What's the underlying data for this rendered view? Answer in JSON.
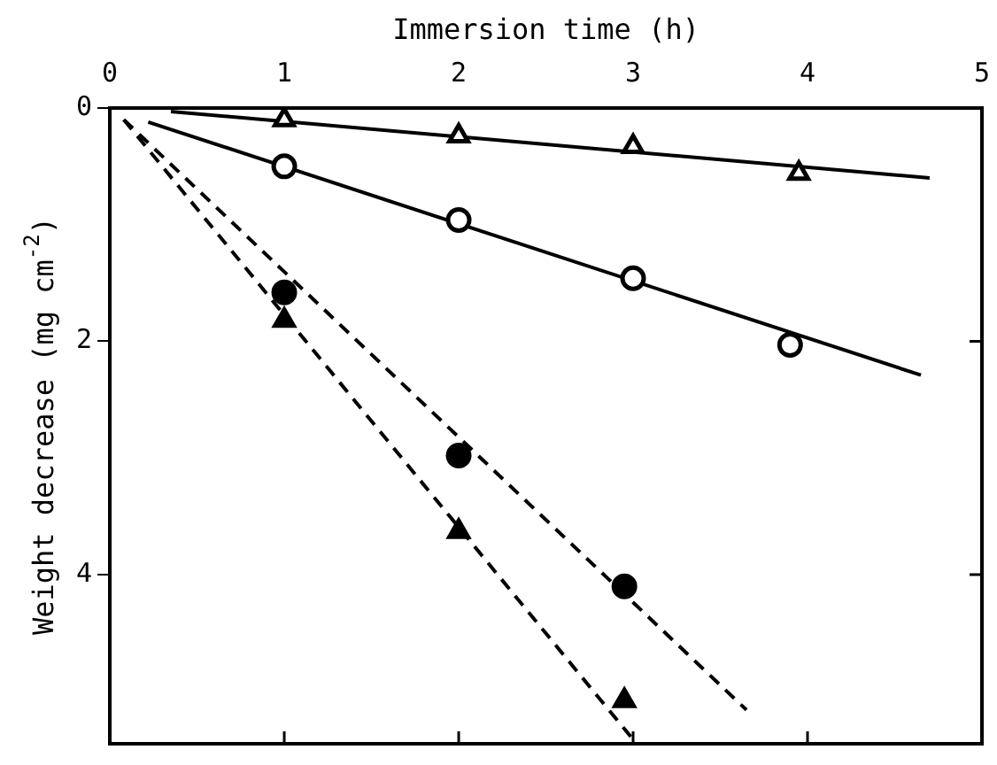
{
  "chart_data": {
    "type": "scatter",
    "xlabel": "Immersion time (h)",
    "ylabel": "Weight decrease (mg cm$^{-2}$)",
    "xlim": [
      0,
      5
    ],
    "xticks": [
      0,
      1,
      2,
      3,
      4,
      5
    ],
    "ylim": [
      5.45,
      0
    ],
    "yticks": [
      0,
      2,
      4
    ],
    "grid": false,
    "legend": false,
    "series": [
      {
        "type": "scatter",
        "marker": "triangle",
        "color": "#ffffff",
        "x": [
          1,
          2,
          3,
          3.95
        ],
        "values": [
          0.1,
          0.24,
          0.33,
          0.56
        ]
      },
      {
        "type": "scatter",
        "marker": "circle",
        "color": "#ffffff",
        "x": [
          1,
          2,
          3,
          3.9
        ],
        "values": [
          0.5,
          0.96,
          1.46,
          2.03
        ]
      },
      {
        "type": "scatter",
        "marker": "circle",
        "color": "#000000",
        "x": [
          1,
          2,
          2.95
        ],
        "values": [
          1.58,
          2.98,
          4.1
        ]
      },
      {
        "type": "scatter",
        "marker": "triangle",
        "color": "#000000",
        "x": [
          1,
          2,
          2.95
        ],
        "values": [
          1.82,
          3.63,
          5.08
        ]
      },
      {
        "type": "line",
        "marker": "none",
        "line_style": "solid",
        "color": "#000000",
        "x": [
          0.35,
          4.7
        ],
        "values": [
          0.03,
          0.6
        ]
      },
      {
        "type": "line",
        "marker": "none",
        "line_style": "solid",
        "color": "#000000",
        "x": [
          0.22,
          4.65
        ],
        "values": [
          0.12,
          2.29
        ]
      },
      {
        "type": "line",
        "marker": "none",
        "line_style": "dashed",
        "color": "#000000",
        "x": [
          0.08,
          3.65
        ],
        "values": [
          0.1,
          5.16
        ]
      },
      {
        "type": "line",
        "marker": "none",
        "line_style": "dashed",
        "color": "#000000",
        "x": [
          0.08,
          3.02
        ],
        "values": [
          0.1,
          5.45
        ]
      }
    ]
  }
}
